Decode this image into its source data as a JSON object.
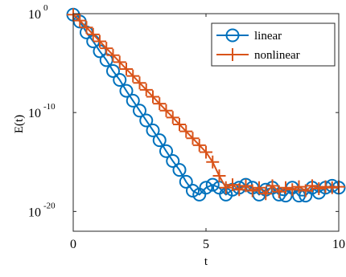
{
  "chart_data": {
    "type": "line",
    "xlabel": "t",
    "ylabel": "E(t)",
    "xlim": [
      0,
      10
    ],
    "ylim_log10": [
      -22,
      0
    ],
    "y_scale": "log",
    "grid": false,
    "legend_placement": "top-right",
    "x_ticks": [
      {
        "value": 0,
        "label": "0"
      },
      {
        "value": 5,
        "label": "5"
      },
      {
        "value": 10,
        "label": "10"
      }
    ],
    "y_ticks": [
      {
        "value_log10": 0,
        "base": "10",
        "exponent": "0"
      },
      {
        "value_log10": -10,
        "base": "10",
        "exponent": "-10"
      },
      {
        "value_log10": -20,
        "base": "10",
        "exponent": "-20"
      }
    ],
    "series": [
      {
        "name": "linear",
        "color": "#0072BD",
        "marker": "circle",
        "x": [
          0.0,
          0.25,
          0.5,
          0.75,
          1.0,
          1.25,
          1.5,
          1.75,
          2.0,
          2.25,
          2.5,
          2.75,
          3.0,
          3.25,
          3.5,
          3.75,
          4.0,
          4.25,
          4.5,
          4.75,
          5.0,
          5.25,
          5.5,
          5.75,
          6.0,
          6.25,
          6.5,
          6.75,
          7.0,
          7.25,
          7.5,
          7.75,
          8.0,
          8.25,
          8.5,
          8.75,
          9.0,
          9.25,
          9.5,
          9.75,
          10.0
        ],
        "log10_y": [
          -0.1,
          -0.8,
          -1.9,
          -2.8,
          -3.8,
          -4.7,
          -5.8,
          -6.7,
          -7.8,
          -8.8,
          -9.8,
          -10.8,
          -11.8,
          -12.8,
          -13.9,
          -14.9,
          -15.8,
          -17.0,
          -17.9,
          -18.3,
          -17.6,
          -17.3,
          -17.6,
          -18.3,
          -17.8,
          -17.6,
          -17.3,
          -17.6,
          -18.3,
          -17.8,
          -17.6,
          -18.3,
          -18.4,
          -17.6,
          -18.4,
          -18.4,
          -17.6,
          -18.1,
          -17.6,
          -17.4,
          -17.6
        ]
      },
      {
        "name": "nonlinear",
        "color": "#D95319",
        "marker": "plus",
        "x": [
          0.0,
          0.25,
          0.5,
          0.75,
          1.0,
          1.25,
          1.5,
          1.75,
          2.0,
          2.25,
          2.5,
          2.75,
          3.0,
          3.25,
          3.5,
          3.75,
          4.0,
          4.25,
          4.5,
          4.75,
          5.0,
          5.25,
          5.5,
          5.75,
          6.0,
          6.25,
          6.5,
          6.75,
          7.0,
          7.25,
          7.5,
          7.75,
          8.0,
          8.25,
          8.5,
          8.75,
          9.0,
          9.25,
          9.5,
          9.75,
          10.0
        ],
        "log10_y": [
          -0.1,
          -0.7,
          -1.4,
          -2.1,
          -2.8,
          -3.5,
          -4.2,
          -4.9,
          -5.6,
          -6.3,
          -7.0,
          -7.7,
          -8.4,
          -9.1,
          -9.8,
          -10.5,
          -11.2,
          -11.9,
          -12.6,
          -13.3,
          -14.0,
          -15.0,
          -16.4,
          -17.6,
          -17.3,
          -17.8,
          -17.4,
          -17.9,
          -17.6,
          -18.2,
          -17.4,
          -18.0,
          -17.6,
          -17.8,
          -17.5,
          -17.9,
          -17.4,
          -17.7,
          -17.5,
          -17.6,
          -17.5
        ]
      }
    ]
  }
}
